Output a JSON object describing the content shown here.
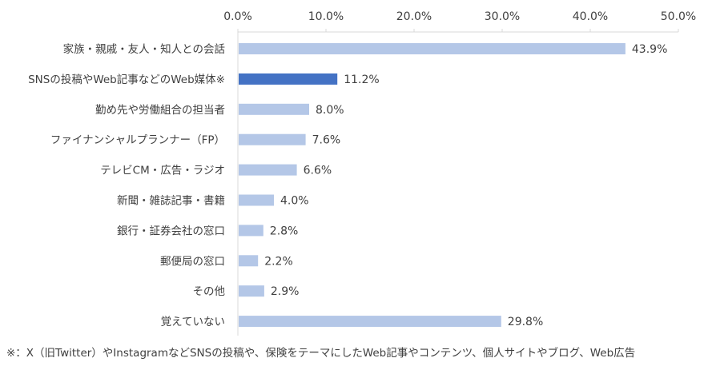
{
  "chart_data": {
    "type": "bar",
    "orientation": "horizontal",
    "categories": [
      "家族・親戚・友人・知人との会話",
      "SNSの投稿やWeb記事などのWeb媒体※",
      "勤め先や労働組合の担当者",
      "ファイナンシャルプランナー（FP）",
      "テレビCM・広告・ラジオ",
      "新聞・雑誌記事・書籍",
      "銀行・証券会社の窓口",
      "郵便局の窓口",
      "その他",
      "覚えていない"
    ],
    "values": [
      43.9,
      11.2,
      8.0,
      7.6,
      6.6,
      4.0,
      2.8,
      2.2,
      2.9,
      29.8
    ],
    "value_labels": [
      "43.9%",
      "11.2%",
      "8.0%",
      "7.6%",
      "6.6%",
      "4.0%",
      "2.8%",
      "2.2%",
      "2.9%",
      "29.8%"
    ],
    "xlim": [
      0,
      50
    ],
    "x_ticks": [
      "0.0%",
      "10.0%",
      "20.0%",
      "30.0%",
      "40.0%",
      "50.0%"
    ],
    "x_tick_values": [
      0,
      10,
      20,
      30,
      40,
      50
    ],
    "x_axis_position": "top",
    "grid": false,
    "legend": "none",
    "highlight_index": 1,
    "colors": {
      "bar": "#b4c7e7",
      "highlight": "#4472c4",
      "axis": "#d9d9d9"
    }
  },
  "footnote": "※：X（旧Twitter）やInstagramなどSNSの投稿や、保険をテーマにしたWeb記事やコンテンツ、個人サイトやブログ、Web広告"
}
